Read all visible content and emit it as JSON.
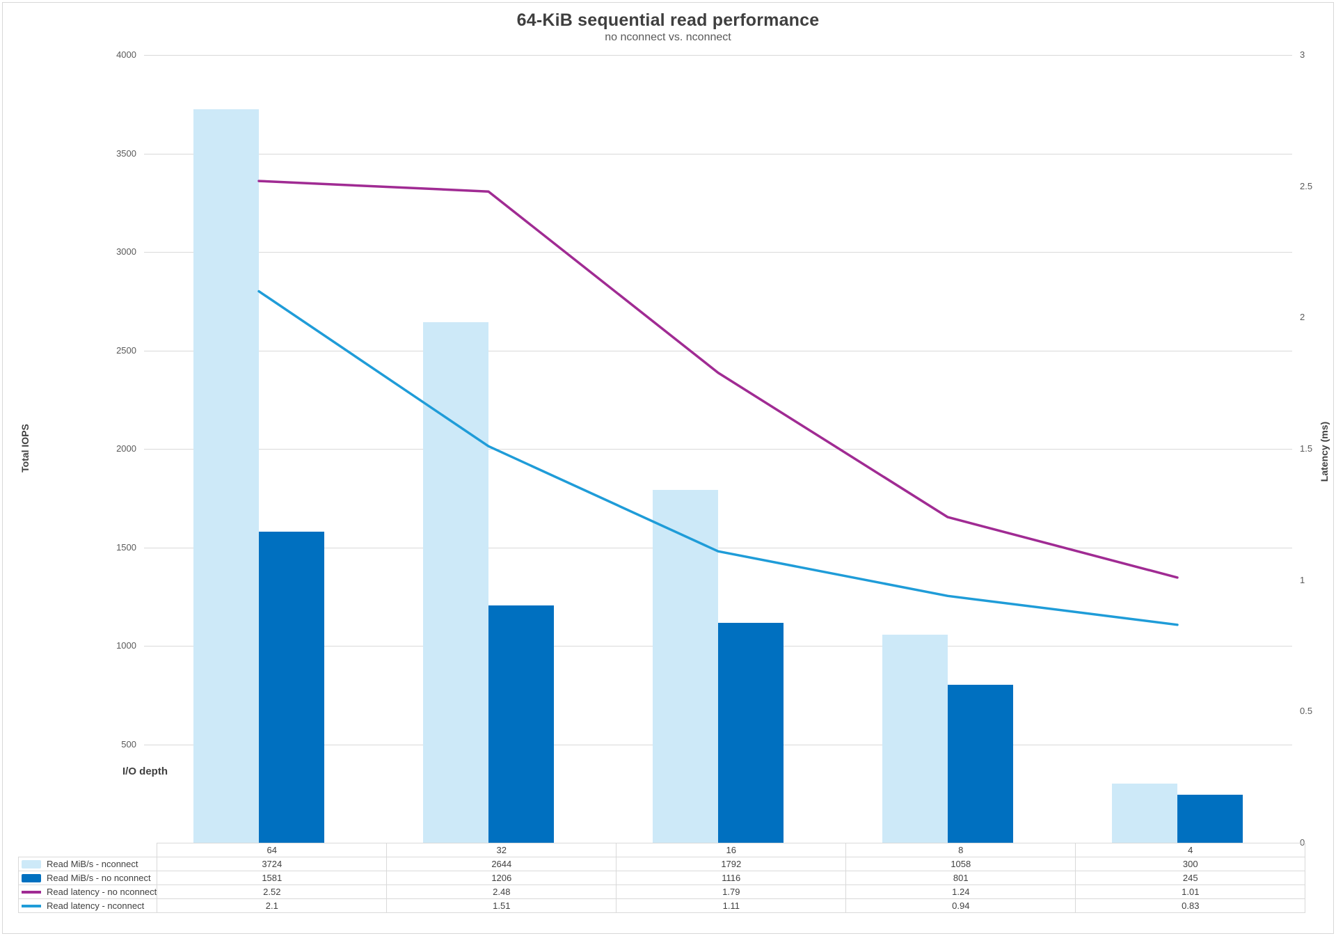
{
  "chart_data": {
    "type": "combo-bar-line",
    "title": "64-KiB sequential read performance",
    "subtitle": "no nconnect vs. nconnect",
    "x_axis_title": "I/O depth",
    "categories": [
      "64",
      "32",
      "16",
      "8",
      "4"
    ],
    "series": [
      {
        "name": "Read MiB/s - nconnect",
        "type": "bar",
        "axis": "left",
        "color": "#CDE9F8",
        "values": [
          3724,
          2644,
          1792,
          1058,
          300
        ]
      },
      {
        "name": "Read MiB/s - no nconnect",
        "type": "bar",
        "axis": "left",
        "color": "#0070C0",
        "values": [
          1581,
          1206,
          1116,
          801,
          245
        ]
      },
      {
        "name": "Read latency - no nconnect",
        "type": "line",
        "axis": "right",
        "color": "#A02B93",
        "values": [
          2.52,
          2.48,
          1.79,
          1.24,
          1.01
        ]
      },
      {
        "name": "Read latency - nconnect",
        "type": "line",
        "axis": "right",
        "color": "#1F9CD8",
        "values": [
          2.1,
          1.51,
          1.11,
          0.94,
          0.83
        ]
      }
    ],
    "left_axis": {
      "title": "Total IOPS",
      "min": 0,
      "max": 4000,
      "step": 500,
      "tick_labels": [
        "4000",
        "3500",
        "3000",
        "2500",
        "2000",
        "1500",
        "1000",
        "500"
      ]
    },
    "right_axis": {
      "title": "Latency (ms)",
      "min": 0,
      "max": 3,
      "step": 0.5,
      "tick_labels": [
        "3",
        "2.5",
        "2",
        "1.5",
        "1",
        "0.5",
        "0"
      ]
    },
    "legend_position": "table-left",
    "grid": "horizontal"
  }
}
